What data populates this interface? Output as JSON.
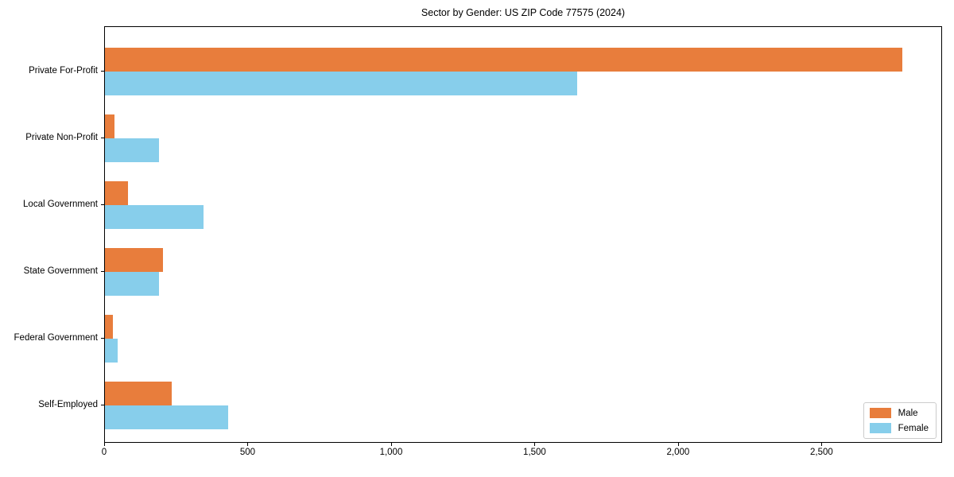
{
  "chart_data": {
    "type": "bar",
    "orientation": "horizontal",
    "title": "Sector by Gender: US ZIP Code 77575 (2024)",
    "categories": [
      "Private For-Profit",
      "Private Non-Profit",
      "Local Government",
      "State Government",
      "Federal Government",
      "Self-Employed"
    ],
    "series": [
      {
        "name": "Male",
        "color": "#e87d3c",
        "values": [
          2785,
          33,
          80,
          202,
          27,
          233
        ]
      },
      {
        "name": "Female",
        "color": "#87ceeb",
        "values": [
          1650,
          190,
          345,
          188,
          45,
          430
        ]
      }
    ],
    "xlabel": "",
    "ylabel": "",
    "xlim": [
      0,
      2920
    ],
    "xticks": [
      0,
      500,
      1000,
      1500,
      2000,
      2500
    ],
    "xtick_labels": [
      "0",
      "500",
      "1,000",
      "1,500",
      "2,000",
      "2,500"
    ],
    "grid": false,
    "legend_position": "lower right",
    "colors": {
      "axis": "#000000",
      "legend_border": "#cccccc",
      "background": "#ffffff"
    }
  }
}
